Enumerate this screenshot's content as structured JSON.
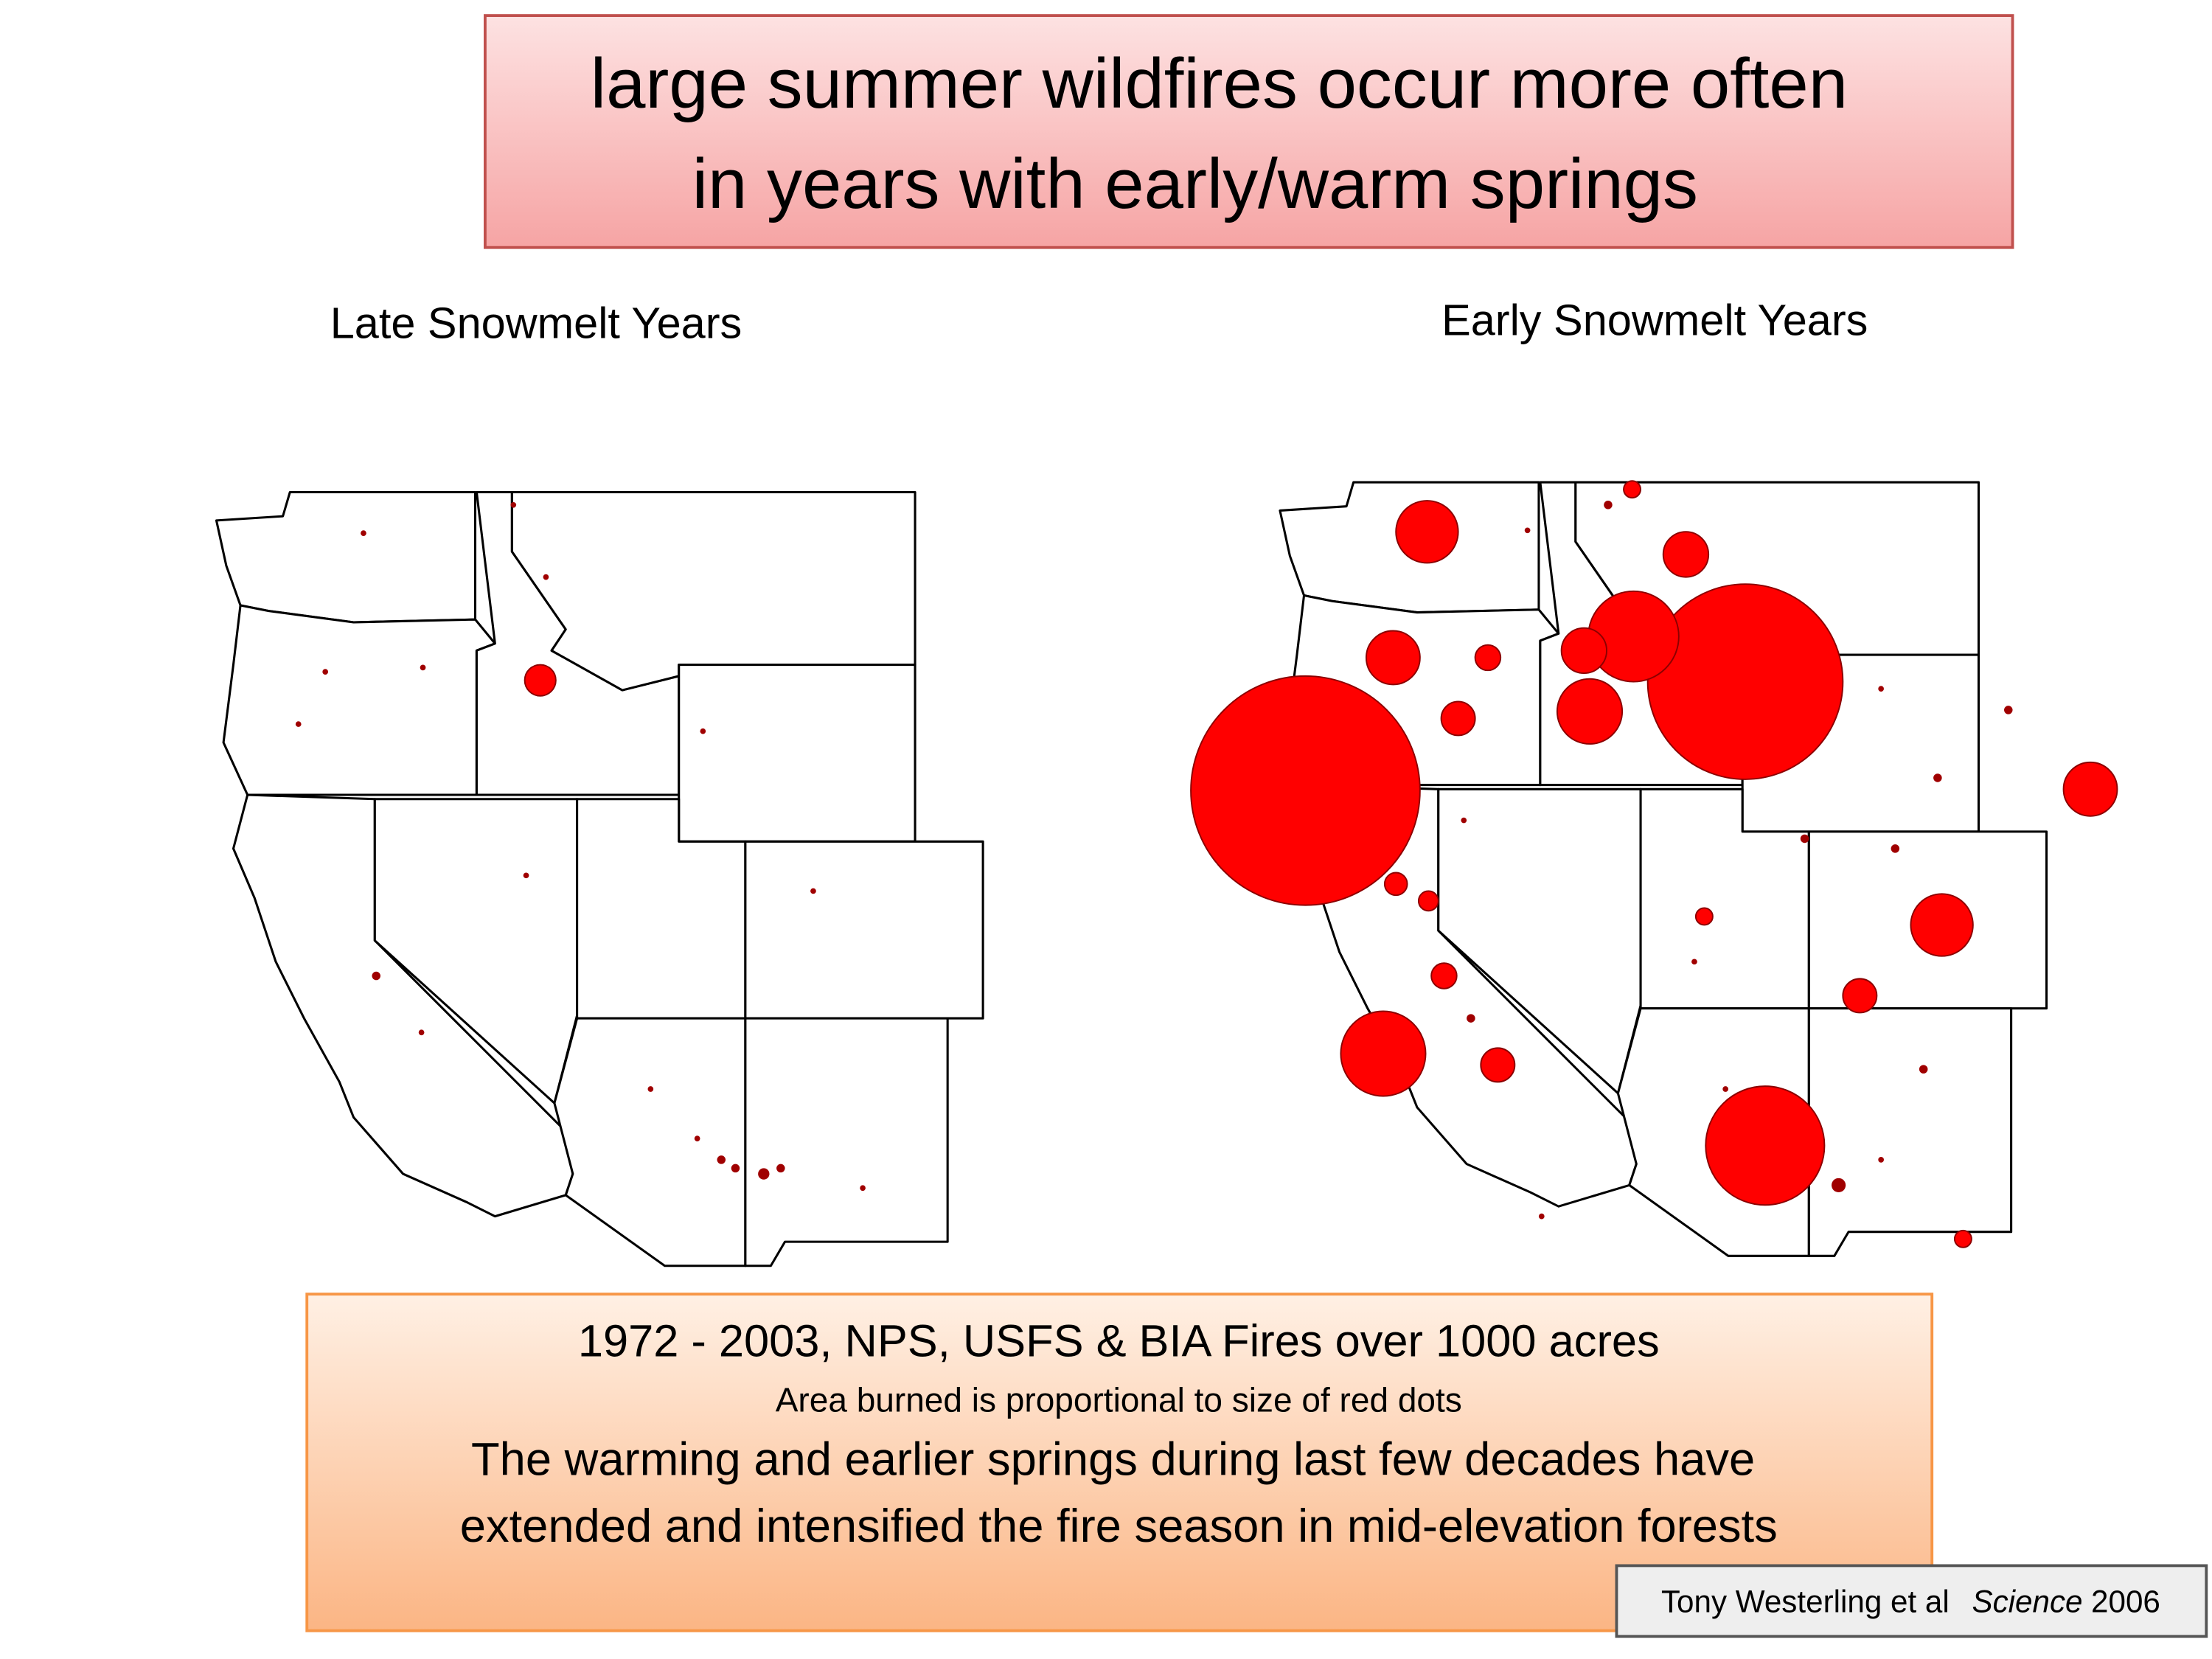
{
  "header": {
    "title_lines": [
      "large summer wildfires occur more often",
      "in years with early/warm springs"
    ]
  },
  "maps": [
    {
      "title": "Late Snowmelt Years"
    },
    {
      "title": "Early Snowmelt Years"
    }
  ],
  "caption": {
    "lines": [
      "1972 - 2003, NPS, USFS & BIA Fires over 1000 acres",
      "Area burned is proportional to size of red dots",
      "The warming and earlier springs during last few decades have",
      "extended and intensified the fire season in mid-elevation forests"
    ]
  },
  "citation": {
    "author": "Tony Westerling et al",
    "journal": "Science",
    "year": "2006"
  }
}
